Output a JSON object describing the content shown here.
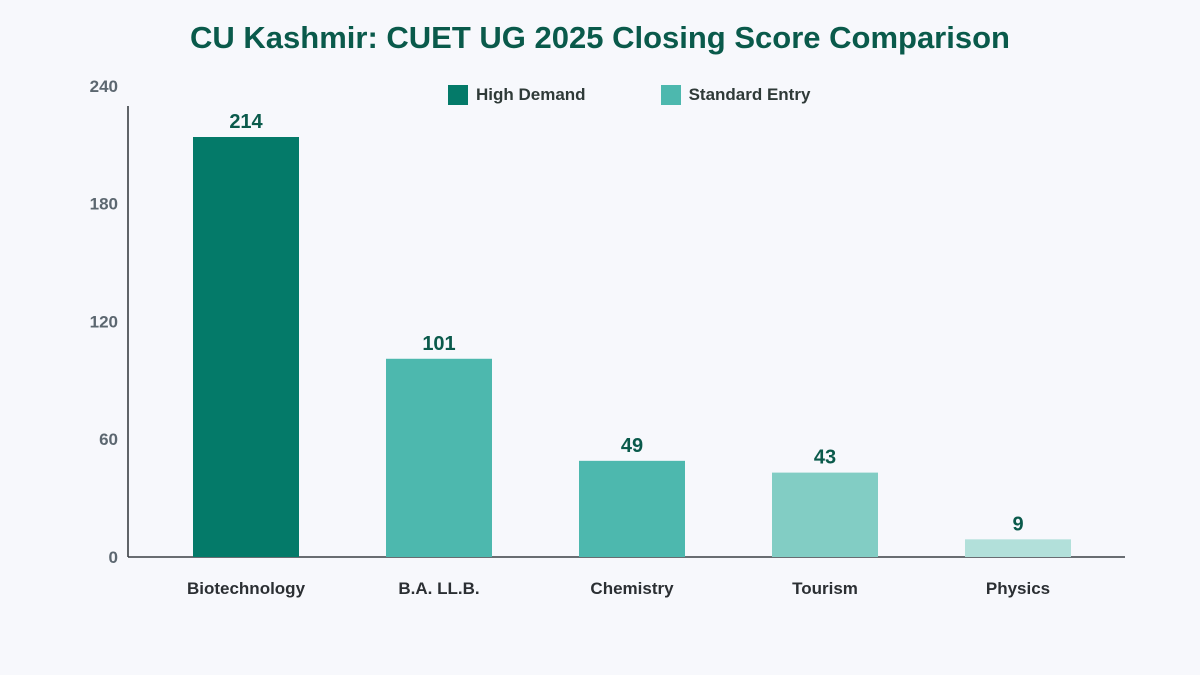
{
  "chart_data": {
    "type": "bar",
    "title": "CU Kashmir: CUET UG 2025 Closing Score Comparison",
    "categories": [
      "Biotechnology",
      "B.A. LL.B.",
      "Chemistry",
      "Tourism",
      "Physics"
    ],
    "values": [
      214,
      101,
      49,
      43,
      9
    ],
    "bar_colors": [
      "#047a69",
      "#4db8ae",
      "#4db8ae",
      "#82cdc4",
      "#b2e0da"
    ],
    "legend": [
      {
        "label": "High Demand",
        "color": "#047a69"
      },
      {
        "label": "Standard Entry",
        "color": "#4db8ae"
      }
    ],
    "legend_position": "top-center",
    "y_ticks": [
      0,
      60,
      120,
      180,
      240
    ],
    "ylim": [
      0,
      230
    ],
    "grid": false,
    "xlabel": "",
    "ylabel": ""
  }
}
